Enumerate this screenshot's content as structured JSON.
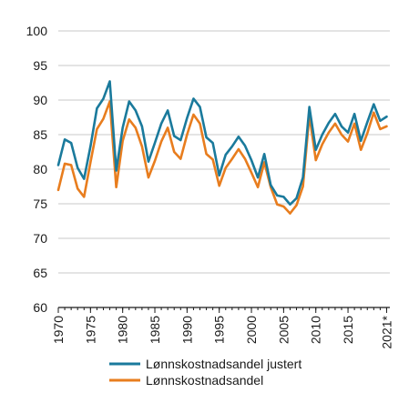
{
  "chart_data": {
    "type": "line",
    "title": "",
    "xlabel": "",
    "ylabel": "",
    "x": [
      1970,
      1971,
      1972,
      1973,
      1974,
      1975,
      1976,
      1977,
      1978,
      1979,
      1980,
      1981,
      1982,
      1983,
      1984,
      1985,
      1986,
      1987,
      1988,
      1989,
      1990,
      1991,
      1992,
      1993,
      1994,
      1995,
      1996,
      1997,
      1998,
      1999,
      2000,
      2001,
      2002,
      2003,
      2004,
      2005,
      2006,
      2007,
      2008,
      2009,
      2010,
      2011,
      2012,
      2013,
      2014,
      2015,
      2016,
      2017,
      2018,
      2019,
      2020,
      2021
    ],
    "xlim": [
      1970,
      2021.5
    ],
    "ylim": [
      60,
      100
    ],
    "x_ticks": [
      {
        "value": 1970,
        "label": "1970"
      },
      {
        "value": 1975,
        "label": "1975"
      },
      {
        "value": 1980,
        "label": "1980"
      },
      {
        "value": 1985,
        "label": "1985"
      },
      {
        "value": 1990,
        "label": "1990"
      },
      {
        "value": 1995,
        "label": "1995"
      },
      {
        "value": 2000,
        "label": "2000"
      },
      {
        "value": 2005,
        "label": "2005"
      },
      {
        "value": 2010,
        "label": "2010"
      },
      {
        "value": 2015,
        "label": "2015"
      },
      {
        "value": 2021,
        "label": "2021*"
      }
    ],
    "y_ticks": [
      {
        "value": 60,
        "label": "60"
      },
      {
        "value": 65,
        "label": "65"
      },
      {
        "value": 70,
        "label": "70"
      },
      {
        "value": 75,
        "label": "75"
      },
      {
        "value": 80,
        "label": "80"
      },
      {
        "value": 85,
        "label": "85"
      },
      {
        "value": 90,
        "label": "90"
      },
      {
        "value": 95,
        "label": "95"
      },
      {
        "value": 100,
        "label": "100"
      }
    ],
    "grid": "horizontal",
    "legend_position": "bottom",
    "series": [
      {
        "name": "Lønnskostnadsandel justert",
        "color": "#1a7a9c",
        "values": [
          80.6,
          84.3,
          83.8,
          80.2,
          78.6,
          83.3,
          88.8,
          90.2,
          92.7,
          79.8,
          86.0,
          89.8,
          88.5,
          86.2,
          81.1,
          83.8,
          86.6,
          88.5,
          84.8,
          84.2,
          87.4,
          90.2,
          89.0,
          84.6,
          83.8,
          79.1,
          82.1,
          83.3,
          84.7,
          83.4,
          81.3,
          78.8,
          82.2,
          77.7,
          76.2,
          76.0,
          74.9,
          75.8,
          78.8,
          89.0,
          82.8,
          85.0,
          86.7,
          88.0,
          86.2,
          85.3,
          88.0,
          84.1,
          86.8,
          89.4,
          87.0,
          87.6
        ]
      },
      {
        "name": "Lønnskostnadsandel",
        "color": "#e87d1e",
        "values": [
          77.0,
          80.8,
          80.6,
          77.2,
          76.0,
          81.0,
          85.8,
          87.3,
          89.8,
          77.4,
          84.1,
          87.2,
          86.0,
          83.3,
          78.8,
          81.2,
          84.0,
          86.0,
          82.5,
          81.5,
          85.0,
          87.9,
          86.6,
          82.2,
          81.4,
          77.6,
          80.2,
          81.5,
          82.9,
          81.5,
          79.5,
          77.4,
          81.0,
          77.4,
          74.9,
          74.6,
          73.6,
          74.8,
          77.5,
          87.8,
          81.3,
          83.6,
          85.3,
          86.6,
          85.0,
          84.0,
          86.6,
          82.8,
          85.2,
          88.2,
          85.8,
          86.2
        ]
      }
    ]
  }
}
